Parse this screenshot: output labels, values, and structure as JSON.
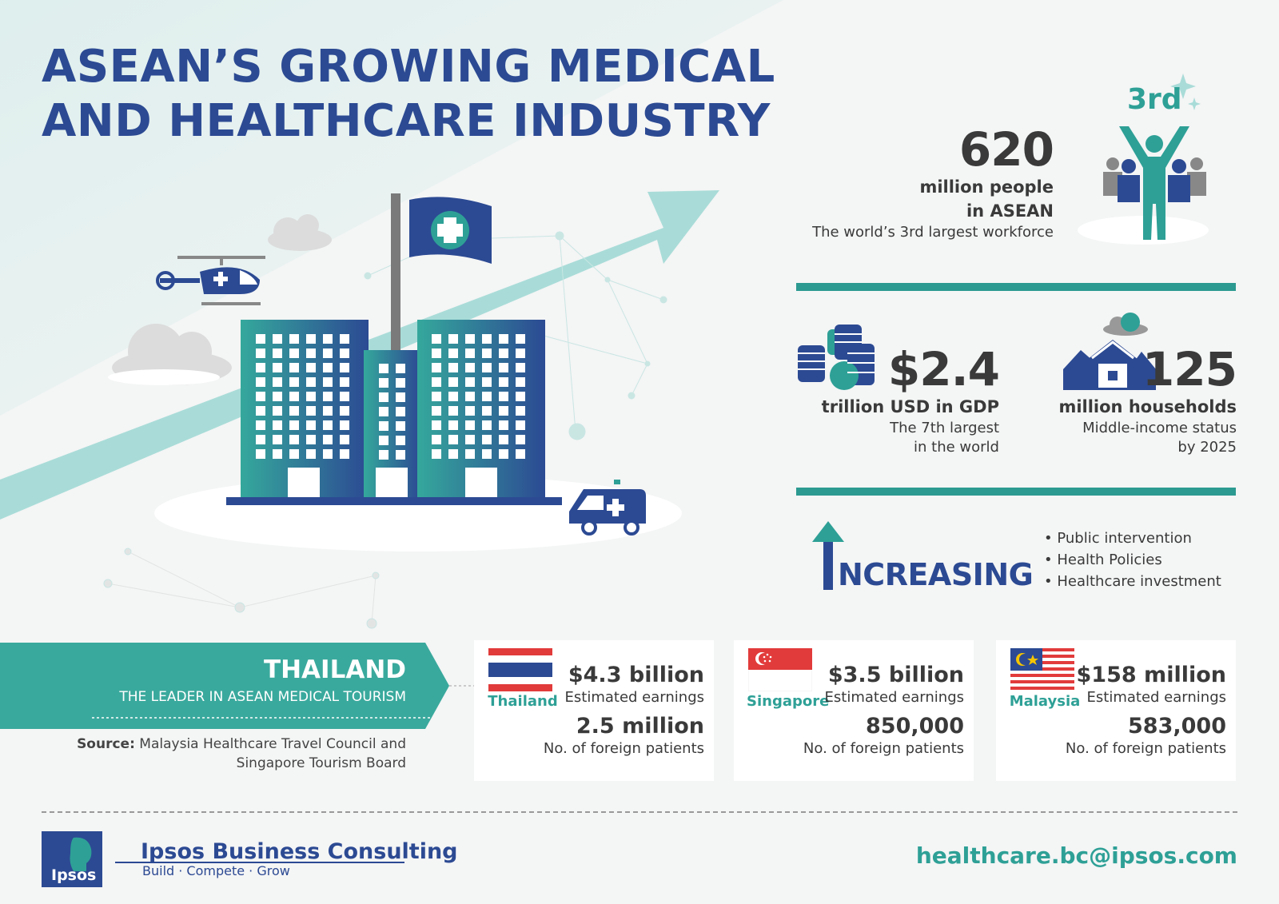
{
  "title": {
    "line1": "ASEAN’S GROWING MEDICAL",
    "line2": "AND HEALTHCARE INDUSTRY"
  },
  "population": {
    "value": "620",
    "line1": "million people",
    "line2": "in ASEAN",
    "note": "The world’s 3rd largest workforce",
    "rank": "3rd"
  },
  "gdp": {
    "value": "$2.4",
    "label": "trillion USD in GDP",
    "note1": "The 7th largest",
    "note2": "in the world"
  },
  "households": {
    "value": "125",
    "label": "million households",
    "note1": "Middle-income status",
    "note2": "by 2025"
  },
  "increasing": {
    "label": "NCREASING",
    "items": [
      "Public intervention",
      "Health Policies",
      "Healthcare investment"
    ]
  },
  "banner": {
    "title": "THAILAND",
    "subtitle": "THE LEADER IN ASEAN MEDICAL TOURISM"
  },
  "source": {
    "label": "Source:",
    "line1": "Malaysia Healthcare Travel Council and",
    "line2": "Singapore Tourism Board"
  },
  "countries": [
    {
      "name": "Thailand",
      "earnings": "$4.3 billion",
      "earnings_label": "Estimated earnings",
      "patients": "2.5 million",
      "patients_label": "No. of foreign patients"
    },
    {
      "name": "Singapore",
      "earnings": "$3.5 billion",
      "earnings_label": "Estimated earnings",
      "patients": "850,000",
      "patients_label": "No. of foreign patients"
    },
    {
      "name": "Malaysia",
      "earnings": "$158 million",
      "earnings_label": "Estimated earnings",
      "patients": "583,000",
      "patients_label": "No. of foreign patients"
    }
  ],
  "footer": {
    "logo": "Ipsos",
    "company": "Ipsos Business Consulting",
    "tagline": "Build · Compete · Grow",
    "email": "healthcare.bc@ipsos.com"
  },
  "colors": {
    "navy": "#2c4a93",
    "teal": "#2ea096",
    "light_teal": "#a9dcd8"
  }
}
